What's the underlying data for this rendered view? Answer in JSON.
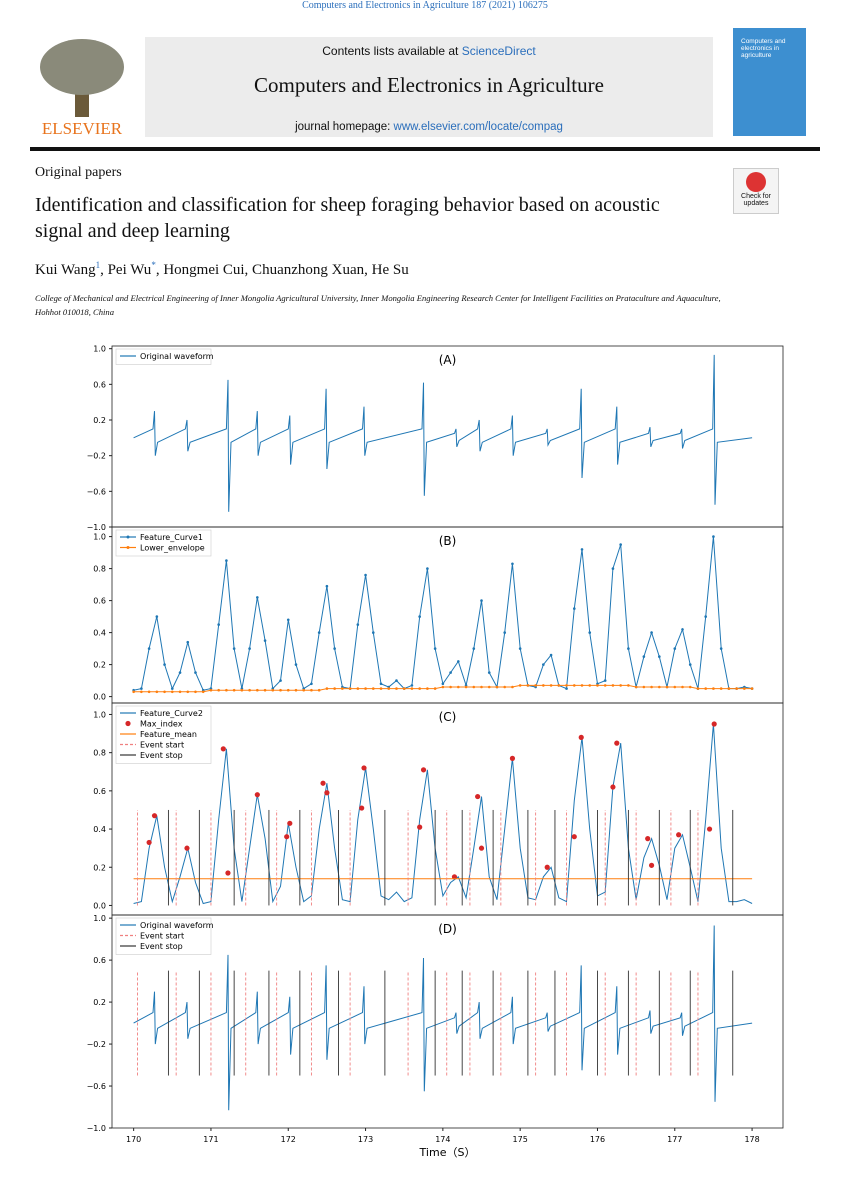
{
  "header": {
    "citation": "Computers and Electronics in Agriculture 187 (2021) 106275",
    "contents": "Contents lists available at",
    "sciencedirect": "ScienceDirect",
    "journal": "Computers and Electronics in Agriculture",
    "homepage_label": "journal homepage:",
    "homepage_url": "www.elsevier.com/locate/compag",
    "publisher": "ELSEVIER",
    "cover_title": "Computers and electronics in agriculture"
  },
  "article": {
    "type": "Original papers",
    "check": "Check for updates",
    "title": "Identification and classification for sheep foraging behavior based on acoustic signal and deep learning",
    "authors": [
      {
        "name": "Kui Wang",
        "mark": "1"
      },
      {
        "name": ", Pei Wu",
        "mark": "*"
      },
      {
        "name": ", Hongmei Cui, Chuanzhong Xuan, He Su"
      }
    ],
    "affiliation": "College of Mechanical and Electrical Engineering of Inner Mongolia Agricultural University, Inner Mongolia Engineering Research Center for Intelligent Facilities on Prataculture and Aquaculture, Hohhot 010018, China"
  },
  "chart_data": [
    {
      "type": "line",
      "title": "(A)",
      "xlim": [
        169.72,
        178.4
      ],
      "ylim": [
        -1.0,
        1.03
      ],
      "yticks": [
        {
          "value": -1,
          "label": "−1.0"
        },
        {
          "value": -0.6,
          "label": "−0.6"
        },
        {
          "value": -0.2,
          "label": "−0.2"
        },
        0.2,
        0.6,
        {
          "value": 1,
          "label": "1.0"
        }
      ],
      "legend": "upper left",
      "x": [
        170.0,
        170.25,
        170.27,
        170.28,
        170.31,
        170.67,
        170.69,
        170.7,
        170.73,
        171.2,
        171.22,
        171.23,
        171.26,
        171.58,
        171.6,
        171.61,
        171.64,
        172.0,
        172.02,
        172.03,
        172.06,
        172.47,
        172.49,
        172.5,
        172.53,
        172.96,
        172.98,
        172.99,
        173.02,
        173.73,
        173.75,
        173.76,
        173.79,
        174.15,
        174.17,
        174.18,
        174.21,
        174.45,
        174.47,
        174.48,
        174.51,
        174.88,
        174.9,
        174.91,
        174.94,
        175.33,
        175.35,
        175.36,
        175.39,
        175.77,
        175.79,
        175.8,
        175.83,
        176.23,
        176.25,
        176.26,
        176.29,
        176.66,
        176.68,
        176.69,
        176.72,
        177.07,
        177.09,
        177.1,
        177.13,
        177.49,
        177.51,
        177.52,
        177.55,
        178.0
      ],
      "series": [
        {
          "name": "Original waveform",
          "color": "#1f77b4",
          "values": [
            0,
            0.1,
            0.3,
            -0.2,
            -0.05,
            0.1,
            0.2,
            -0.15,
            -0.05,
            0.1,
            0.65,
            -0.83,
            -0.05,
            0.1,
            0.3,
            -0.2,
            -0.05,
            0.1,
            0.25,
            -0.3,
            -0.05,
            0.1,
            0.55,
            -0.35,
            -0.05,
            0.1,
            0.35,
            -0.2,
            -0.05,
            0.1,
            0.62,
            -0.65,
            -0.05,
            0.05,
            0.1,
            -0.1,
            -0.03,
            0.1,
            0.2,
            -0.15,
            -0.05,
            0.1,
            0.25,
            -0.2,
            -0.05,
            0.05,
            0.1,
            -0.08,
            -0.03,
            0.1,
            0.55,
            -0.45,
            -0.05,
            0.1,
            0.35,
            -0.3,
            -0.05,
            0.05,
            0.12,
            -0.1,
            -0.03,
            0.05,
            0.1,
            -0.12,
            -0.03,
            0.1,
            0.93,
            -0.75,
            -0.05,
            0
          ]
        }
      ]
    },
    {
      "type": "line",
      "title": "(B)",
      "xlim": [
        169.72,
        178.4
      ],
      "ylim": [
        -0.04,
        1.06
      ],
      "yticks": [
        {
          "value": 0,
          "label": "0.0"
        },
        0.2,
        0.4,
        0.6,
        0.8,
        {
          "value": 1,
          "label": "1.0"
        }
      ],
      "legend": "upper left",
      "x": [
        170.0,
        170.1,
        170.2,
        170.3,
        170.4,
        170.5,
        170.6,
        170.7,
        170.8,
        170.9,
        171.0,
        171.1,
        171.2,
        171.3,
        171.4,
        171.5,
        171.6,
        171.7,
        171.8,
        171.9,
        172.0,
        172.1,
        172.2,
        172.3,
        172.4,
        172.5,
        172.6,
        172.7,
        172.8,
        172.9,
        173.0,
        173.1,
        173.2,
        173.3,
        173.4,
        173.5,
        173.6,
        173.7,
        173.8,
        173.9,
        174.0,
        174.1,
        174.2,
        174.3,
        174.4,
        174.5,
        174.6,
        174.7,
        174.8,
        174.9,
        175.0,
        175.1,
        175.2,
        175.3,
        175.4,
        175.5,
        175.6,
        175.7,
        175.8,
        175.9,
        176.0,
        176.1,
        176.2,
        176.3,
        176.4,
        176.5,
        176.6,
        176.7,
        176.8,
        176.9,
        177.0,
        177.1,
        177.2,
        177.3,
        177.4,
        177.5,
        177.6,
        177.7,
        177.8,
        177.9,
        178.0
      ],
      "series": [
        {
          "name": "Feature_Curve1",
          "color": "#1f77b4",
          "markers": true,
          "values": [
            0.04,
            0.05,
            0.3,
            0.5,
            0.2,
            0.05,
            0.15,
            0.34,
            0.15,
            0.04,
            0.05,
            0.45,
            0.85,
            0.3,
            0.05,
            0.3,
            0.62,
            0.35,
            0.05,
            0.1,
            0.48,
            0.2,
            0.05,
            0.08,
            0.4,
            0.69,
            0.3,
            0.06,
            0.05,
            0.45,
            0.76,
            0.4,
            0.08,
            0.06,
            0.1,
            0.05,
            0.07,
            0.5,
            0.8,
            0.3,
            0.08,
            0.15,
            0.22,
            0.07,
            0.3,
            0.6,
            0.15,
            0.06,
            0.4,
            0.83,
            0.3,
            0.07,
            0.06,
            0.2,
            0.26,
            0.07,
            0.05,
            0.55,
            0.92,
            0.4,
            0.08,
            0.1,
            0.8,
            0.95,
            0.3,
            0.06,
            0.25,
            0.4,
            0.25,
            0.06,
            0.3,
            0.42,
            0.2,
            0.05,
            0.5,
            1.0,
            0.3,
            0.05,
            0.05,
            0.06,
            0.05
          ]
        },
        {
          "name": "Lower_envelope",
          "color": "#ff7f0e",
          "markers": true,
          "values": [
            0.03,
            0.03,
            0.03,
            0.03,
            0.03,
            0.03,
            0.03,
            0.03,
            0.03,
            0.03,
            0.04,
            0.04,
            0.04,
            0.04,
            0.04,
            0.04,
            0.04,
            0.04,
            0.04,
            0.04,
            0.04,
            0.04,
            0.04,
            0.04,
            0.04,
            0.05,
            0.05,
            0.05,
            0.05,
            0.05,
            0.05,
            0.05,
            0.05,
            0.05,
            0.05,
            0.05,
            0.05,
            0.05,
            0.05,
            0.05,
            0.06,
            0.06,
            0.06,
            0.06,
            0.06,
            0.06,
            0.06,
            0.06,
            0.06,
            0.06,
            0.07,
            0.07,
            0.07,
            0.07,
            0.07,
            0.07,
            0.07,
            0.07,
            0.07,
            0.07,
            0.07,
            0.07,
            0.07,
            0.07,
            0.07,
            0.06,
            0.06,
            0.06,
            0.06,
            0.06,
            0.06,
            0.06,
            0.06,
            0.05,
            0.05,
            0.05,
            0.05,
            0.05,
            0.05,
            0.05,
            0.05
          ]
        }
      ]
    },
    {
      "type": "line",
      "title": "(C)",
      "xlim": [
        169.72,
        178.4
      ],
      "ylim": [
        -0.05,
        1.06
      ],
      "yticks": [
        {
          "value": 0,
          "label": "0.0"
        },
        0.2,
        0.4,
        0.6,
        0.8,
        {
          "value": 1,
          "label": "1.0"
        }
      ],
      "legend": "upper left",
      "x": [
        170.0,
        170.1,
        170.2,
        170.3,
        170.4,
        170.5,
        170.6,
        170.7,
        170.8,
        170.9,
        171.0,
        171.1,
        171.2,
        171.3,
        171.4,
        171.5,
        171.6,
        171.7,
        171.8,
        171.9,
        172.0,
        172.1,
        172.2,
        172.3,
        172.4,
        172.5,
        172.6,
        172.7,
        172.8,
        172.9,
        173.0,
        173.1,
        173.2,
        173.3,
        173.4,
        173.5,
        173.6,
        173.7,
        173.8,
        173.9,
        174.0,
        174.1,
        174.2,
        174.3,
        174.4,
        174.5,
        174.6,
        174.7,
        174.8,
        174.9,
        175.0,
        175.1,
        175.2,
        175.3,
        175.4,
        175.5,
        175.6,
        175.7,
        175.8,
        175.9,
        176.0,
        176.1,
        176.2,
        176.3,
        176.4,
        176.5,
        176.6,
        176.7,
        176.8,
        176.9,
        177.0,
        177.1,
        177.2,
        177.3,
        177.4,
        177.5,
        177.6,
        177.7,
        177.8,
        177.9,
        178.0
      ],
      "series": [
        {
          "name": "Feature_Curve2",
          "color": "#1f77b4",
          "values": [
            0.01,
            0.02,
            0.3,
            0.47,
            0.2,
            0.02,
            0.15,
            0.3,
            0.12,
            0.01,
            0.02,
            0.45,
            0.82,
            0.3,
            0.02,
            0.3,
            0.58,
            0.35,
            0.02,
            0.1,
            0.43,
            0.2,
            0.02,
            0.05,
            0.4,
            0.64,
            0.3,
            0.03,
            0.02,
            0.45,
            0.72,
            0.4,
            0.05,
            0.03,
            0.07,
            0.02,
            0.04,
            0.45,
            0.71,
            0.3,
            0.05,
            0.12,
            0.15,
            0.04,
            0.3,
            0.57,
            0.15,
            0.03,
            0.4,
            0.77,
            0.3,
            0.04,
            0.03,
            0.15,
            0.2,
            0.04,
            0.02,
            0.55,
            0.88,
            0.4,
            0.05,
            0.07,
            0.62,
            0.85,
            0.3,
            0.03,
            0.25,
            0.35,
            0.21,
            0.03,
            0.3,
            0.37,
            0.2,
            0.02,
            0.45,
            0.95,
            0.3,
            0.02,
            0.02,
            0.03,
            0.01
          ]
        },
        {
          "name": "Max_index",
          "color": "#d62728",
          "type": "scatter",
          "x": [
            170.2,
            170.27,
            170.69,
            171.16,
            171.22,
            171.6,
            171.98,
            172.02,
            172.45,
            172.5,
            172.95,
            172.98,
            173.7,
            173.75,
            174.15,
            174.45,
            174.5,
            174.9,
            175.35,
            175.7,
            175.79,
            176.2,
            176.25,
            176.65,
            176.7,
            177.05,
            177.45,
            177.51
          ],
          "values": [
            0.33,
            0.47,
            0.3,
            0.82,
            0.17,
            0.58,
            0.36,
            0.43,
            0.64,
            0.59,
            0.51,
            0.72,
            0.41,
            0.71,
            0.15,
            0.57,
            0.3,
            0.77,
            0.2,
            0.36,
            0.88,
            0.62,
            0.85,
            0.35,
            0.21,
            0.37,
            0.4,
            0.95
          ]
        },
        {
          "name": "Feature_mean",
          "color": "#ff7f0e",
          "x": [
            170.0,
            178.0
          ],
          "values": [
            0.14,
            0.14
          ]
        },
        {
          "name": "Event start",
          "color": "#f08080",
          "type": "vline",
          "dashed": true,
          "ymin": 0,
          "ymax": 0.5,
          "x": [
            170.05,
            170.55,
            171.0,
            171.45,
            171.85,
            172.3,
            172.8,
            173.55,
            174.05,
            174.35,
            174.75,
            175.2,
            175.6,
            176.1,
            176.5,
            176.95,
            177.3
          ]
        },
        {
          "name": "Event stop",
          "color": "#333333",
          "type": "vline",
          "ymin": 0,
          "ymax": 0.5,
          "x": [
            170.45,
            170.85,
            171.3,
            171.75,
            172.15,
            172.65,
            173.25,
            173.9,
            174.25,
            174.65,
            175.1,
            175.45,
            176.0,
            176.4,
            176.8,
            177.2,
            177.75
          ]
        }
      ]
    },
    {
      "type": "line",
      "title": "(D)",
      "xlabel": "Time（S）",
      "xlim": [
        169.72,
        178.4
      ],
      "ylim": [
        -1.0,
        1.03
      ],
      "xticks": [
        170,
        171,
        172,
        173,
        174,
        175,
        176,
        177,
        178
      ],
      "yticks": [
        {
          "value": -1,
          "label": "−1.0"
        },
        {
          "value": -0.6,
          "label": "−0.6"
        },
        {
          "value": -0.2,
          "label": "−0.2"
        },
        0.2,
        0.6,
        {
          "value": 1,
          "label": "1.0"
        }
      ],
      "legend": "upper left",
      "x": [
        170.0,
        170.25,
        170.27,
        170.28,
        170.31,
        170.67,
        170.69,
        170.7,
        170.73,
        171.2,
        171.22,
        171.23,
        171.26,
        171.58,
        171.6,
        171.61,
        171.64,
        172.0,
        172.02,
        172.03,
        172.06,
        172.47,
        172.49,
        172.5,
        172.53,
        172.96,
        172.98,
        172.99,
        173.02,
        173.73,
        173.75,
        173.76,
        173.79,
        174.15,
        174.17,
        174.18,
        174.21,
        174.45,
        174.47,
        174.48,
        174.51,
        174.88,
        174.9,
        174.91,
        174.94,
        175.33,
        175.35,
        175.36,
        175.39,
        175.77,
        175.79,
        175.8,
        175.83,
        176.23,
        176.25,
        176.26,
        176.29,
        176.66,
        176.68,
        176.69,
        176.72,
        177.07,
        177.09,
        177.1,
        177.13,
        177.49,
        177.51,
        177.52,
        177.55,
        178.0
      ],
      "series": [
        {
          "name": "Original waveform",
          "color": "#1f77b4",
          "values": [
            0,
            0.1,
            0.3,
            -0.2,
            -0.05,
            0.1,
            0.2,
            -0.15,
            -0.05,
            0.1,
            0.65,
            -0.83,
            -0.05,
            0.1,
            0.3,
            -0.2,
            -0.05,
            0.1,
            0.25,
            -0.3,
            -0.05,
            0.1,
            0.55,
            -0.35,
            -0.05,
            0.1,
            0.35,
            -0.2,
            -0.05,
            0.1,
            0.62,
            -0.65,
            -0.05,
            0.05,
            0.1,
            -0.1,
            -0.03,
            0.1,
            0.2,
            -0.15,
            -0.05,
            0.1,
            0.25,
            -0.2,
            -0.05,
            0.05,
            0.1,
            -0.08,
            -0.03,
            0.1,
            0.55,
            -0.45,
            -0.05,
            0.1,
            0.35,
            -0.3,
            -0.05,
            0.05,
            0.12,
            -0.1,
            -0.03,
            0.05,
            0.1,
            -0.12,
            -0.03,
            0.1,
            0.93,
            -0.75,
            -0.05,
            0
          ]
        },
        {
          "name": "Event start",
          "color": "#f08080",
          "type": "vline",
          "dashed": true,
          "ymin": -0.5,
          "ymax": 0.5,
          "x": [
            170.05,
            170.55,
            171.0,
            171.45,
            171.85,
            172.3,
            172.8,
            173.55,
            174.05,
            174.35,
            174.75,
            175.2,
            175.6,
            176.1,
            176.5,
            176.95,
            177.3
          ]
        },
        {
          "name": "Event stop",
          "color": "#333333",
          "type": "vline",
          "ymin": -0.5,
          "ymax": 0.5,
          "x": [
            170.45,
            170.85,
            171.3,
            171.75,
            172.15,
            172.65,
            173.25,
            173.9,
            174.25,
            174.65,
            175.1,
            175.45,
            176.0,
            176.4,
            176.8,
            177.2,
            177.75
          ]
        }
      ]
    }
  ]
}
